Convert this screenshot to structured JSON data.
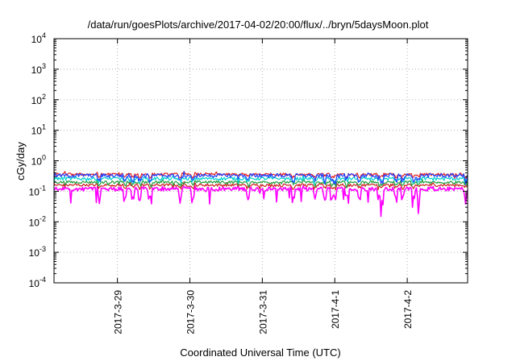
{
  "chart_data": {
    "type": "line",
    "title": "/data/run/goesPlots/archive/2017-04-02/20:00/flux/../bryn/5daysMoon.plot",
    "xlabel": "Coordinated Universal Time (UTC)",
    "ylabel": "cGy/day",
    "x_range": [
      "2017-03-28 03:00",
      "2017-04-02 20:00"
    ],
    "x_ticks": [
      "2017-3-29",
      "2017-3-30",
      "2017-3-31",
      "2017-4-1",
      "2017-4-2"
    ],
    "x_tick_dates": [
      "2017-03-29",
      "2017-03-30",
      "2017-03-31",
      "2017-04-01",
      "2017-04-02"
    ],
    "y_scale": "log",
    "ylim": [
      0.0001,
      10000
    ],
    "y_ticks": [
      {
        "base": "10",
        "exp": "-4"
      },
      {
        "base": "10",
        "exp": "-3"
      },
      {
        "base": "10",
        "exp": "-2"
      },
      {
        "base": "10",
        "exp": "-1"
      },
      {
        "base": "10",
        "exp": "0"
      },
      {
        "base": "10",
        "exp": "1"
      },
      {
        "base": "10",
        "exp": "2"
      },
      {
        "base": "10",
        "exp": "3"
      },
      {
        "base": "10",
        "exp": "4"
      }
    ],
    "grid": true,
    "series": [
      {
        "color": "#ff00ff",
        "level": 0.12,
        "noise": 0.15,
        "dips": true
      },
      {
        "color": "#cc2020",
        "level": 0.16,
        "noise": 0.1,
        "dips": false
      },
      {
        "color": "#20a040",
        "level": 0.2,
        "noise": 0.1,
        "dips": false
      },
      {
        "color": "#00d0d0",
        "level": 0.26,
        "noise": 0.12,
        "dips": false
      },
      {
        "color": "#e02020",
        "level": 0.36,
        "noise": 0.1,
        "dips": false
      },
      {
        "color": "#2040ff",
        "level": 0.33,
        "noise": 0.15,
        "dips": true
      }
    ]
  }
}
